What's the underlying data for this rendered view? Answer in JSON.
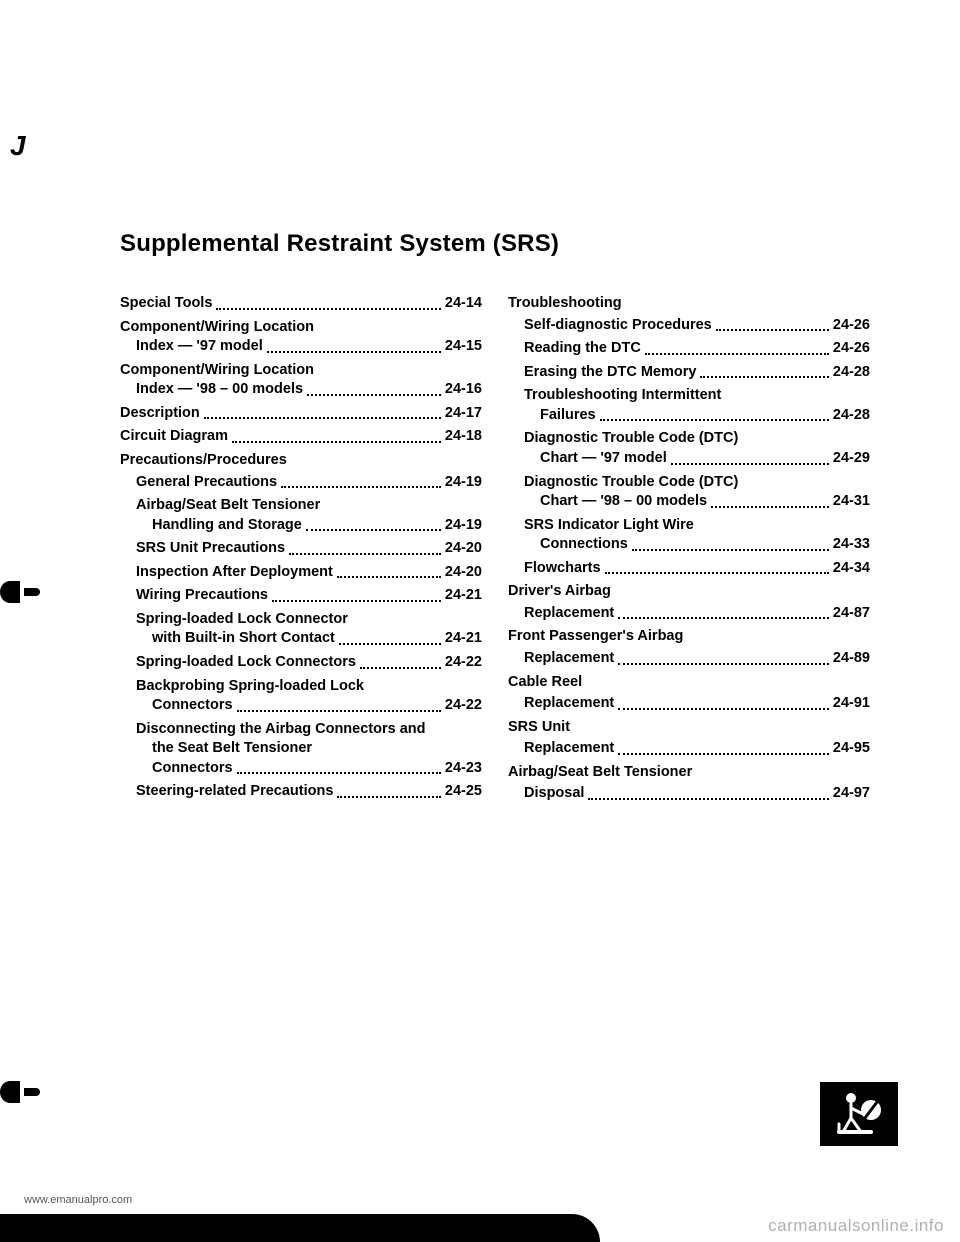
{
  "title": "Supplemental Restraint System (SRS)",
  "columns": {
    "left": [
      {
        "type": "entry",
        "label": "Special Tools",
        "page": "24-14",
        "indent": 0
      },
      {
        "type": "multi",
        "first": "Component/Wiring Location",
        "second": "Index — '97 model",
        "page": "24-15",
        "indent": 0
      },
      {
        "type": "multi",
        "first": "Component/Wiring Location",
        "second": "Index — '98 – 00 models",
        "page": "24-16",
        "indent": 0
      },
      {
        "type": "entry",
        "label": "Description",
        "page": "24-17",
        "indent": 0
      },
      {
        "type": "entry",
        "label": "Circuit Diagram",
        "page": "24-18",
        "indent": 0
      },
      {
        "type": "heading",
        "label": "Precautions/Procedures",
        "indent": 0
      },
      {
        "type": "entry",
        "label": "General Precautions",
        "page": "24-19",
        "indent": 1
      },
      {
        "type": "multi",
        "first": "Airbag/Seat Belt Tensioner",
        "second": "Handling and Storage",
        "page": "24-19",
        "indent": 1
      },
      {
        "type": "entry",
        "label": "SRS Unit Precautions",
        "page": "24-20",
        "indent": 1
      },
      {
        "type": "entry",
        "label": "Inspection After Deployment",
        "page": "24-20",
        "indent": 1
      },
      {
        "type": "entry",
        "label": "Wiring Precautions",
        "page": "24-21",
        "indent": 1
      },
      {
        "type": "multi",
        "first": "Spring-loaded Lock Connector",
        "second": "with Built-in Short Contact",
        "page": "24-21",
        "indent": 1
      },
      {
        "type": "entry",
        "label": "Spring-loaded Lock Connectors",
        "page": "24-22",
        "indent": 1
      },
      {
        "type": "multi",
        "first": "Backprobing Spring-loaded Lock",
        "second": "Connectors",
        "page": "24-22",
        "indent": 1
      },
      {
        "type": "multi3",
        "l1": "Disconnecting the Airbag Connectors and",
        "l2": "the Seat Belt Tensioner",
        "l3": "Connectors",
        "page": "24-23",
        "indent": 1
      },
      {
        "type": "entry",
        "label": "Steering-related Precautions",
        "page": "24-25",
        "indent": 1
      }
    ],
    "right": [
      {
        "type": "heading",
        "label": "Troubleshooting",
        "indent": 0
      },
      {
        "type": "entry",
        "label": "Self-diagnostic Procedures",
        "page": "24-26",
        "indent": 1
      },
      {
        "type": "entry",
        "label": "Reading the DTC",
        "page": "24-26",
        "indent": 1
      },
      {
        "type": "entry",
        "label": "Erasing the DTC Memory",
        "page": "24-28",
        "indent": 1
      },
      {
        "type": "multi",
        "first": "Troubleshooting Intermittent",
        "second": "Failures",
        "page": "24-28",
        "indent": 1
      },
      {
        "type": "multi",
        "first": "Diagnostic Trouble Code (DTC)",
        "second": "Chart — '97 model",
        "page": "24-29",
        "indent": 1
      },
      {
        "type": "multi",
        "first": "Diagnostic Trouble Code (DTC)",
        "second": "Chart — '98 – 00 models",
        "page": "24-31",
        "indent": 1
      },
      {
        "type": "multi",
        "first": "SRS Indicator Light Wire",
        "second": "Connections",
        "page": "24-33",
        "indent": 1
      },
      {
        "type": "entry",
        "label": "Flowcharts",
        "page": "24-34",
        "indent": 1
      },
      {
        "type": "heading",
        "label": "Driver's Airbag",
        "indent": 0
      },
      {
        "type": "entry",
        "label": "Replacement",
        "page": "24-87",
        "indent": 1
      },
      {
        "type": "heading",
        "label": "Front Passenger's Airbag",
        "indent": 0
      },
      {
        "type": "entry",
        "label": "Replacement",
        "page": "24-89",
        "indent": 1
      },
      {
        "type": "heading",
        "label": "Cable Reel",
        "indent": 0
      },
      {
        "type": "entry",
        "label": "Replacement",
        "page": "24-91",
        "indent": 1
      },
      {
        "type": "heading",
        "label": "SRS Unit",
        "indent": 0
      },
      {
        "type": "entry",
        "label": "Replacement",
        "page": "24-95",
        "indent": 1
      },
      {
        "type": "heading",
        "label": "Airbag/Seat Belt Tensioner",
        "indent": 0
      },
      {
        "type": "entry",
        "label": "Disposal",
        "page": "24-97",
        "indent": 1
      }
    ]
  },
  "footer_url": "www.emanualpro.com",
  "watermark": "carmanualsonline.info",
  "edge_mark": "J"
}
